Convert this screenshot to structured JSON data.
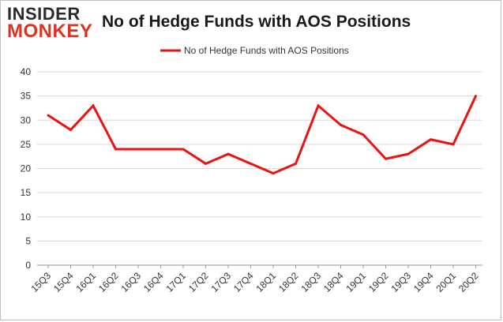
{
  "brand": {
    "logo_top": "INSIDER",
    "logo_bottom": "MONKEY"
  },
  "chart_data": {
    "type": "line",
    "title": "No of Hedge Funds with AOS Positions",
    "categories": [
      "15Q3",
      "15Q4",
      "16Q1",
      "16Q2",
      "16Q3",
      "16Q4",
      "17Q1",
      "17Q2",
      "17Q3",
      "17Q4",
      "18Q1",
      "18Q2",
      "18Q3",
      "18Q4",
      "19Q1",
      "19Q2",
      "19Q3",
      "19Q4",
      "20Q1",
      "20Q2"
    ],
    "series": [
      {
        "name": "No of Hedge Funds with AOS Positions",
        "values": [
          31,
          28,
          33,
          24,
          24,
          24,
          24,
          21,
          23,
          21,
          19,
          21,
          33,
          29,
          27,
          22,
          23,
          26,
          25,
          35
        ],
        "color": "#ee1111"
      }
    ],
    "ylim": [
      0,
      40
    ],
    "yticks": [
      0,
      5,
      10,
      15,
      20,
      25,
      30,
      35,
      40
    ],
    "grid": true,
    "legend": "top-center"
  }
}
